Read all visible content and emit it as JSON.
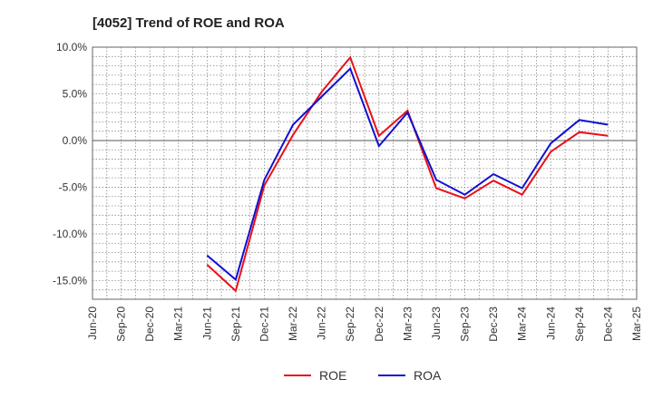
{
  "chart_data": {
    "type": "line",
    "title": "[4052]  Trend of ROE and ROA",
    "xlabel": "",
    "ylabel": "",
    "x": [
      "Jun-20",
      "Sep-20",
      "Dec-20",
      "Mar-21",
      "Jun-21",
      "Sep-21",
      "Dec-21",
      "Mar-22",
      "Jun-22",
      "Sep-22",
      "Dec-22",
      "Mar-23",
      "Jun-23",
      "Sep-23",
      "Dec-23",
      "Mar-24",
      "Jun-24",
      "Sep-24",
      "Dec-24",
      "Mar-25"
    ],
    "y_ticks": [
      10,
      5,
      0,
      -5,
      -10,
      -15
    ],
    "y_tick_labels": [
      "10.0%",
      "5.0%",
      "0.0%",
      "-5.0%",
      "-10.0%",
      "-15.0%"
    ],
    "ylim": [
      -17,
      10
    ],
    "grid": true,
    "legend_position": "bottom-center",
    "series": [
      {
        "name": "ROE",
        "color": "#e8101a",
        "values": [
          null,
          null,
          null,
          null,
          -13.3,
          -16.1,
          -4.8,
          0.6,
          5.2,
          8.9,
          0.5,
          3.2,
          -5.1,
          -6.2,
          -4.3,
          -5.8,
          -1.2,
          0.9,
          0.5,
          null
        ]
      },
      {
        "name": "ROA",
        "color": "#1010d0",
        "values": [
          null,
          null,
          null,
          null,
          -12.3,
          -14.9,
          -4.2,
          1.7,
          4.7,
          7.7,
          -0.6,
          3.0,
          -4.2,
          -5.8,
          -3.6,
          -5.1,
          -0.3,
          2.2,
          1.7,
          null
        ]
      }
    ]
  }
}
